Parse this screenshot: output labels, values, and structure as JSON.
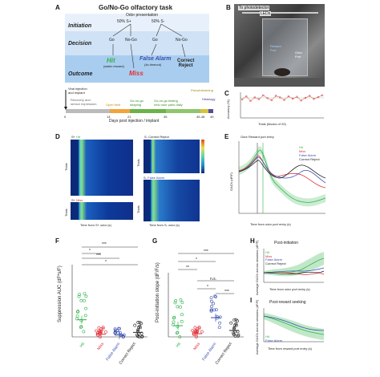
{
  "panel_labels": {
    "a": "A",
    "b": "B",
    "c": "C",
    "d": "D",
    "e": "E",
    "f": "F",
    "g": "G",
    "h": "H",
    "i": "I"
  },
  "panel_a": {
    "title": "Go/No-Go olfactory task",
    "subtitle": "Odor presentation",
    "s_plus": "50% S+",
    "s_minus": "50% S-",
    "initiation": "Initiation",
    "decision": "Decision",
    "outcome": "Outcome",
    "go1": "Go",
    "nogo1": "No-Go",
    "go2": "Go",
    "nogo2": "No-Go",
    "hit": "Hit",
    "hit_note": "(water reward)",
    "miss": "Miss",
    "false_alarm": "False Alarm",
    "fa_note": "(4s timeout)",
    "correct_reject": "Correct\nReject",
    "timeline": {
      "viral": "Viral injection\nand implant",
      "recovery": "Recovery and\nsensor expression",
      "open_field": "Open field",
      "go_shaping": "Go-no-go\nshaping",
      "go_testing": "Go-no-go testing\nnew odor pairs daily",
      "pseudo": "Pseudolearning",
      "histology": "Histology",
      "ticks": [
        "0",
        "14",
        "21",
        "35",
        "45-48",
        "49"
      ],
      "axis_label": "Days post injection / implant"
    }
  },
  "panel_b": {
    "photodetector": "To photodetector",
    "leds": "LEDs",
    "sensor": "Reward\nPort",
    "odor_port": "Odor\nPort"
  },
  "panel_c": {
    "ylabel": "Accuracy (%)",
    "xlabel": "Trials (blocks of 20)"
  },
  "panel_d": {
    "splus_label": "S+",
    "hit_label": "Hit",
    "sminus_label": "S-",
    "cr_label": "Correct Reject",
    "fa_label": "False Alarm",
    "miss_label": "Miss",
    "ylabel_trials": "Trials",
    "xlabel1": "Time from S+ odor (s)",
    "xlabel2": "Time from S- odor (s)"
  },
  "panel_e": {
    "annotation": "Odor  Reward port entry",
    "ylabel": "GACh (dF/F)",
    "xlabel": "Time from odor port entry (s)",
    "legend": [
      "Hit",
      "Miss",
      "False Alarm",
      "Correct Reject"
    ]
  },
  "panel_f": {
    "ylabel": "Suppression AUC (dF*s/F)",
    "sig": [
      "***",
      "*",
      "***",
      "*"
    ],
    "categories": [
      "Hit",
      "Miss",
      "False Alarm",
      "Correct Reject"
    ]
  },
  "panel_g": {
    "ylabel": "Post-initiation slope (dF/F/s)",
    "sig": [
      "***",
      "*",
      "**",
      "n.s.",
      "*",
      "***"
    ],
    "categories": [
      "Hit",
      "Miss",
      "False Alarm",
      "Correct Reject"
    ]
  },
  "panel_h": {
    "title": "Post-initiation",
    "ylabel": "Average GACh across sessions (dF/F)",
    "xlabel": "Time from odor port entry (s)",
    "legend": [
      "Hit",
      "Miss",
      "False Alarm",
      "Correct Reject"
    ]
  },
  "panel_i": {
    "title": "Post-reward seeking",
    "ylabel": "Average GACh across sessions (dF/F)",
    "xlabel": "Time from reward port entry (s)",
    "legend": [
      "Hit",
      "False Alarm"
    ]
  },
  "colors": {
    "hit": "#2fb24a",
    "miss": "#e0303a",
    "false_alarm": "#3a4fb0",
    "correct_reject": "#222222"
  },
  "chart_data": [
    {
      "type": "line",
      "id": "panel_c",
      "ylabel": "Accuracy (%)",
      "xlabel": "Trials (blocks of 20)",
      "x": [
        1,
        2,
        3,
        4,
        5,
        6,
        7,
        8,
        9,
        10,
        11,
        12,
        13,
        14,
        15,
        16,
        17,
        18,
        19,
        20
      ],
      "series": [
        {
          "values": [
            72,
            84,
            66,
            80,
            73,
            88,
            77,
            69,
            86,
            80,
            70,
            84,
            75,
            82,
            68,
            78,
            86,
            74,
            81,
            88
          ]
        }
      ],
      "ylim": [
        0,
        100
      ]
    },
    {
      "type": "scatter",
      "id": "panel_f",
      "ylabel": "Suppression AUC (dF*s/F)",
      "categories": [
        "Hit",
        "Miss",
        "False Alarm",
        "Correct Reject"
      ],
      "mean": [
        1.9,
        0.3,
        0.2,
        0.5
      ],
      "ylim": [
        0,
        8
      ]
    },
    {
      "type": "scatter",
      "id": "panel_g",
      "ylabel": "Post-initiation slope (dF/F/s)",
      "categories": [
        "Hit",
        "Miss",
        "False Alarm",
        "Correct Reject"
      ],
      "mean": [
        0.7,
        0.2,
        1.2,
        0.4
      ],
      "ylim": [
        0,
        4
      ]
    }
  ]
}
